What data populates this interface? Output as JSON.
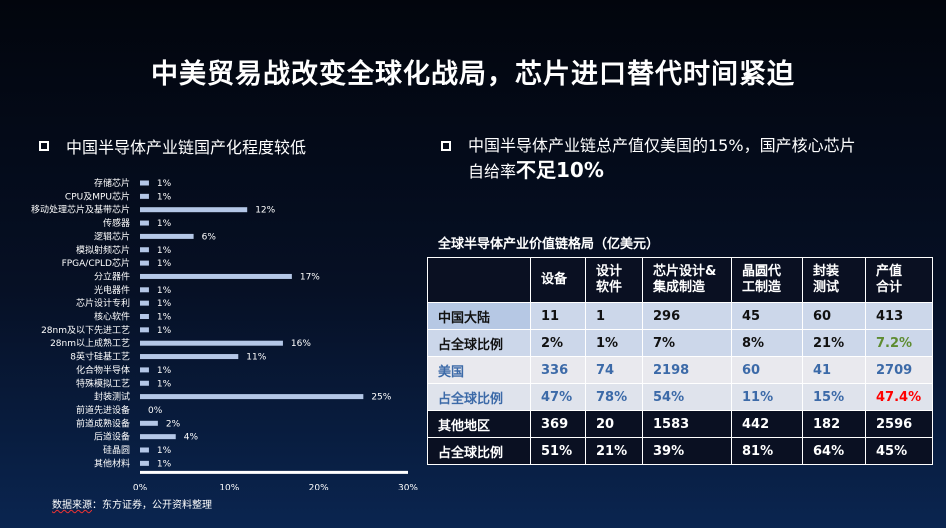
{
  "title": "中美贸易战改变全球化战局，芯片进口替代时间紧迫",
  "left_heading": "中国半导体产业链国产化程度较低",
  "right_heading": {
    "line1": "中国半导体产业链总产值仅美国的15%，国产核心芯片",
    "line2_prefix": "自给率",
    "line2_emphasis": "不足10%"
  },
  "source": {
    "prefix": "数据来源",
    "rest": "：东方证券，公开资料整理"
  },
  "chart_data": {
    "type": "bar",
    "orientation": "horizontal",
    "categories": [
      "存储芯片",
      "CPU及MPU芯片",
      "移动处理芯片及基带芯片",
      "传感器",
      "逻辑芯片",
      "模拟射频芯片",
      "FPGA/CPLD芯片",
      "分立器件",
      "光电器件",
      "芯片设计专利",
      "核心软件",
      "28nm及以下先进工艺",
      "28nm以上成熟工艺",
      "8英寸硅基工艺",
      "化合物半导体",
      "特殊模拟工艺",
      "封装测试",
      "前道先进设备",
      "前道成熟设备",
      "后道设备",
      "硅晶圆",
      "其他材料"
    ],
    "values": [
      1,
      1,
      12,
      1,
      6,
      1,
      1,
      17,
      1,
      1,
      1,
      1,
      16,
      11,
      1,
      1,
      25,
      0,
      2,
      4,
      1,
      1
    ],
    "value_labels": [
      "1%",
      "1%",
      "12%",
      "1%",
      "6%",
      "1%",
      "1%",
      "17%",
      "1%",
      "1%",
      "1%",
      "1%",
      "16%",
      "11%",
      "1%",
      "1%",
      "25%",
      "0%",
      "2%",
      "4%",
      "1%",
      "1%"
    ],
    "x_ticks": [
      "0%",
      "10%",
      "20%",
      "30%"
    ],
    "xlim": [
      0,
      30
    ],
    "bar_color": "#b4c7e7"
  },
  "table": {
    "title": "全球半导体产业价值链格局（亿美元）",
    "headers": [
      {
        "l1": "",
        "l2": ""
      },
      {
        "l1": "设备",
        "l2": ""
      },
      {
        "l1": "设计",
        "l2": "软件"
      },
      {
        "l1": "芯片设计&",
        "l2": "集成制造"
      },
      {
        "l1": "晶圆代",
        "l2": "工制造"
      },
      {
        "l1": "封装",
        "l2": "测试"
      },
      {
        "l1": "产值",
        "l2": "合计"
      }
    ],
    "rows": [
      [
        "中国大陆",
        "11",
        "1",
        "296",
        "45",
        "60",
        "413"
      ],
      [
        "占全球比例",
        "2%",
        "1%",
        "7%",
        "8%",
        "21%",
        "7.2%"
      ],
      [
        "美国",
        "336",
        "74",
        "2198",
        "60",
        "41",
        "2709"
      ],
      [
        "占全球比例",
        "47%",
        "78%",
        "54%",
        "11%",
        "15%",
        "47.4%"
      ],
      [
        "其他地区",
        "369",
        "20",
        "1583",
        "442",
        "182",
        "2596"
      ],
      [
        "占全球比例",
        "51%",
        "21%",
        "39%",
        "81%",
        "64%",
        "45%"
      ]
    ],
    "highlight_colors": {
      "china_share_total": "#5e8c31",
      "us_share_total": "#ff0000"
    }
  }
}
